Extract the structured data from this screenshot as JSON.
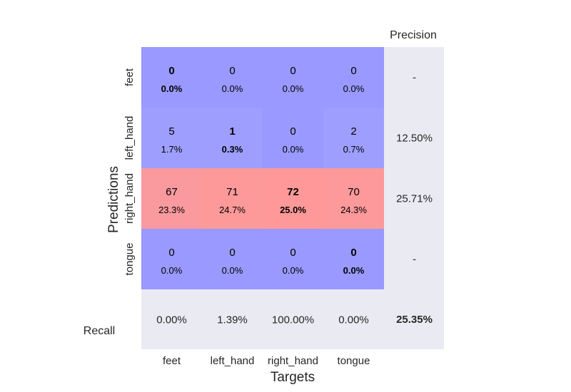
{
  "chart_data": {
    "type": "heatmap",
    "subtype": "confusion-matrix",
    "categories": [
      "feet",
      "left_hand",
      "right_hand",
      "tongue"
    ],
    "xlabel": "Targets",
    "ylabel": "Predictions",
    "precision_label": "Precision",
    "recall_label": "Recall",
    "counts": [
      [
        0,
        0,
        0,
        0
      ],
      [
        5,
        1,
        0,
        2
      ],
      [
        67,
        71,
        72,
        70
      ],
      [
        0,
        0,
        0,
        0
      ]
    ],
    "percents": [
      [
        "0.0%",
        "0.0%",
        "0.0%",
        "0.0%"
      ],
      [
        "1.7%",
        "0.3%",
        "0.0%",
        "0.7%"
      ],
      [
        "23.3%",
        "24.7%",
        "25.0%",
        "24.3%"
      ],
      [
        "0.0%",
        "0.0%",
        "0.0%",
        "0.0%"
      ]
    ],
    "precision": [
      "-",
      "12.50%",
      "25.71%",
      "-"
    ],
    "recall": [
      "0.00%",
      "1.39%",
      "100.00%",
      "0.00%"
    ],
    "accuracy": "25.35%",
    "colors": {
      "low": "#9999ff",
      "high": "#ff9999",
      "margin_background": "#eaeaf2",
      "text": "#262626",
      "cell_text": "#000000"
    }
  }
}
